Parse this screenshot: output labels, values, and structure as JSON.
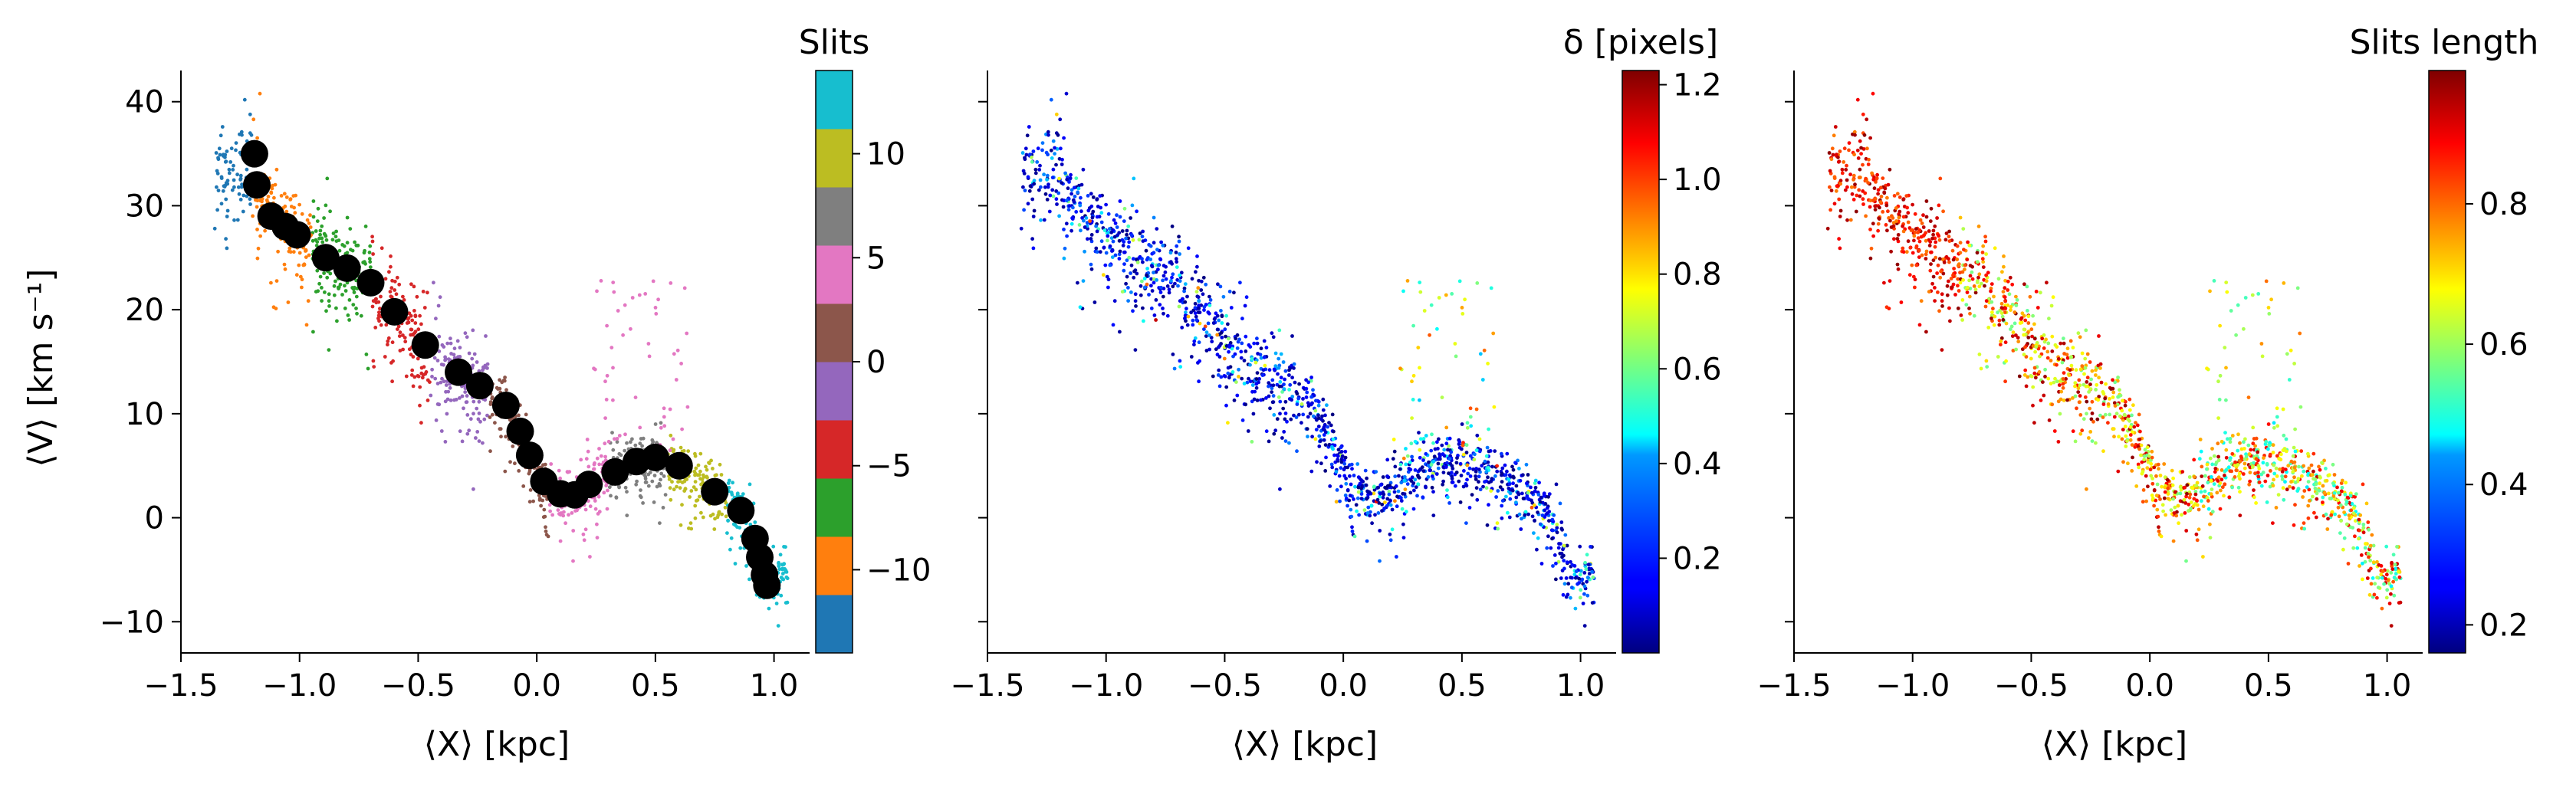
{
  "chart_data": [
    {
      "type": "scatter",
      "panel": "left",
      "xlabel": "⟨X⟩ [kpc]",
      "ylabel": "⟨V⟩ [km s⁻¹]",
      "xlim": [
        -1.5,
        1.15
      ],
      "ylim": [
        -13,
        43
      ],
      "xticks": [
        -1.5,
        -1.0,
        -0.5,
        0.0,
        0.5,
        1.0
      ],
      "xtick_labels": [
        "−1.5",
        "−1.0",
        "−0.5",
        "0.0",
        "0.5",
        "1.0"
      ],
      "yticks": [
        -10,
        0,
        10,
        20,
        30,
        40
      ],
      "ytick_labels": [
        "−10",
        "0",
        "10",
        "20",
        "30",
        "40"
      ],
      "colorbar": {
        "label": "Slits",
        "type": "discrete",
        "range": [
          -14,
          14
        ],
        "colors": [
          "#1f77b4",
          "#ff7f0e",
          "#2ca02c",
          "#d62728",
          "#9467bd",
          "#8c564b",
          "#e377c2",
          "#7f7f7f",
          "#bcbd22",
          "#17becf"
        ],
        "ticks": [
          -10,
          -5,
          0,
          5,
          10
        ],
        "tick_labels": [
          "−10",
          "−5",
          "0",
          "5",
          "10"
        ]
      },
      "series": [
        {
          "marker": "large-black-circle",
          "x": [
            -1.19,
            -1.18,
            -1.12,
            -1.06,
            -1.01,
            -0.89,
            -0.8,
            -0.7,
            -0.6,
            -0.47,
            -0.33,
            -0.24,
            -0.13,
            -0.07,
            -0.03,
            0.03,
            0.1,
            0.16,
            0.22,
            0.33,
            0.42,
            0.5,
            0.6,
            0.75,
            0.86,
            0.92,
            0.94,
            0.96,
            0.97
          ],
          "y": [
            35,
            32,
            29,
            28,
            27.2,
            25,
            24,
            22.6,
            19.8,
            16.6,
            14,
            12.7,
            10.8,
            8.3,
            6,
            3.5,
            2.3,
            2.2,
            3.2,
            4.4,
            5.4,
            5.8,
            5,
            2.5,
            0.7,
            -2,
            -3.8,
            -5.5,
            -6.5
          ]
        },
        {
          "marker": "small-dots",
          "color_by": "Slits",
          "description_path": "points scattered along the same curve"
        }
      ]
    },
    {
      "type": "scatter",
      "panel": "middle",
      "xlabel": "⟨X⟩ [kpc]",
      "xlim": [
        -1.5,
        1.15
      ],
      "ylim": [
        -13,
        43
      ],
      "xticks": [
        -1.5,
        -1.0,
        -0.5,
        0.0,
        0.5,
        1.0
      ],
      "xtick_labels": [
        "−1.5",
        "−1.0",
        "−0.5",
        "0.0",
        "0.5",
        "1.0"
      ],
      "colorbar": {
        "label": "δ [pixels]",
        "type": "continuous",
        "colormap": "jet",
        "range": [
          0,
          1.23
        ],
        "ticks": [
          0.2,
          0.4,
          0.6,
          0.8,
          1.0,
          1.2
        ],
        "tick_labels": [
          "0.2",
          "0.4",
          "0.6",
          "0.8",
          "1.0",
          "1.2"
        ]
      }
    },
    {
      "type": "scatter",
      "panel": "right",
      "xlabel": "⟨X⟩ [kpc]",
      "xlim": [
        -1.5,
        1.15
      ],
      "ylim": [
        -13,
        43
      ],
      "xticks": [
        -1.5,
        -1.0,
        -0.5,
        0.0,
        0.5,
        1.0
      ],
      "xtick_labels": [
        "−1.5",
        "−1.0",
        "−0.5",
        "0.0",
        "0.5",
        "1.0"
      ],
      "colorbar": {
        "label": "Slits length",
        "type": "continuous",
        "colormap": "jet",
        "range": [
          0.16,
          0.99
        ],
        "ticks": [
          0.2,
          0.4,
          0.6,
          0.8
        ],
        "tick_labels": [
          "0.2",
          "0.4",
          "0.6",
          "0.8"
        ]
      }
    }
  ]
}
